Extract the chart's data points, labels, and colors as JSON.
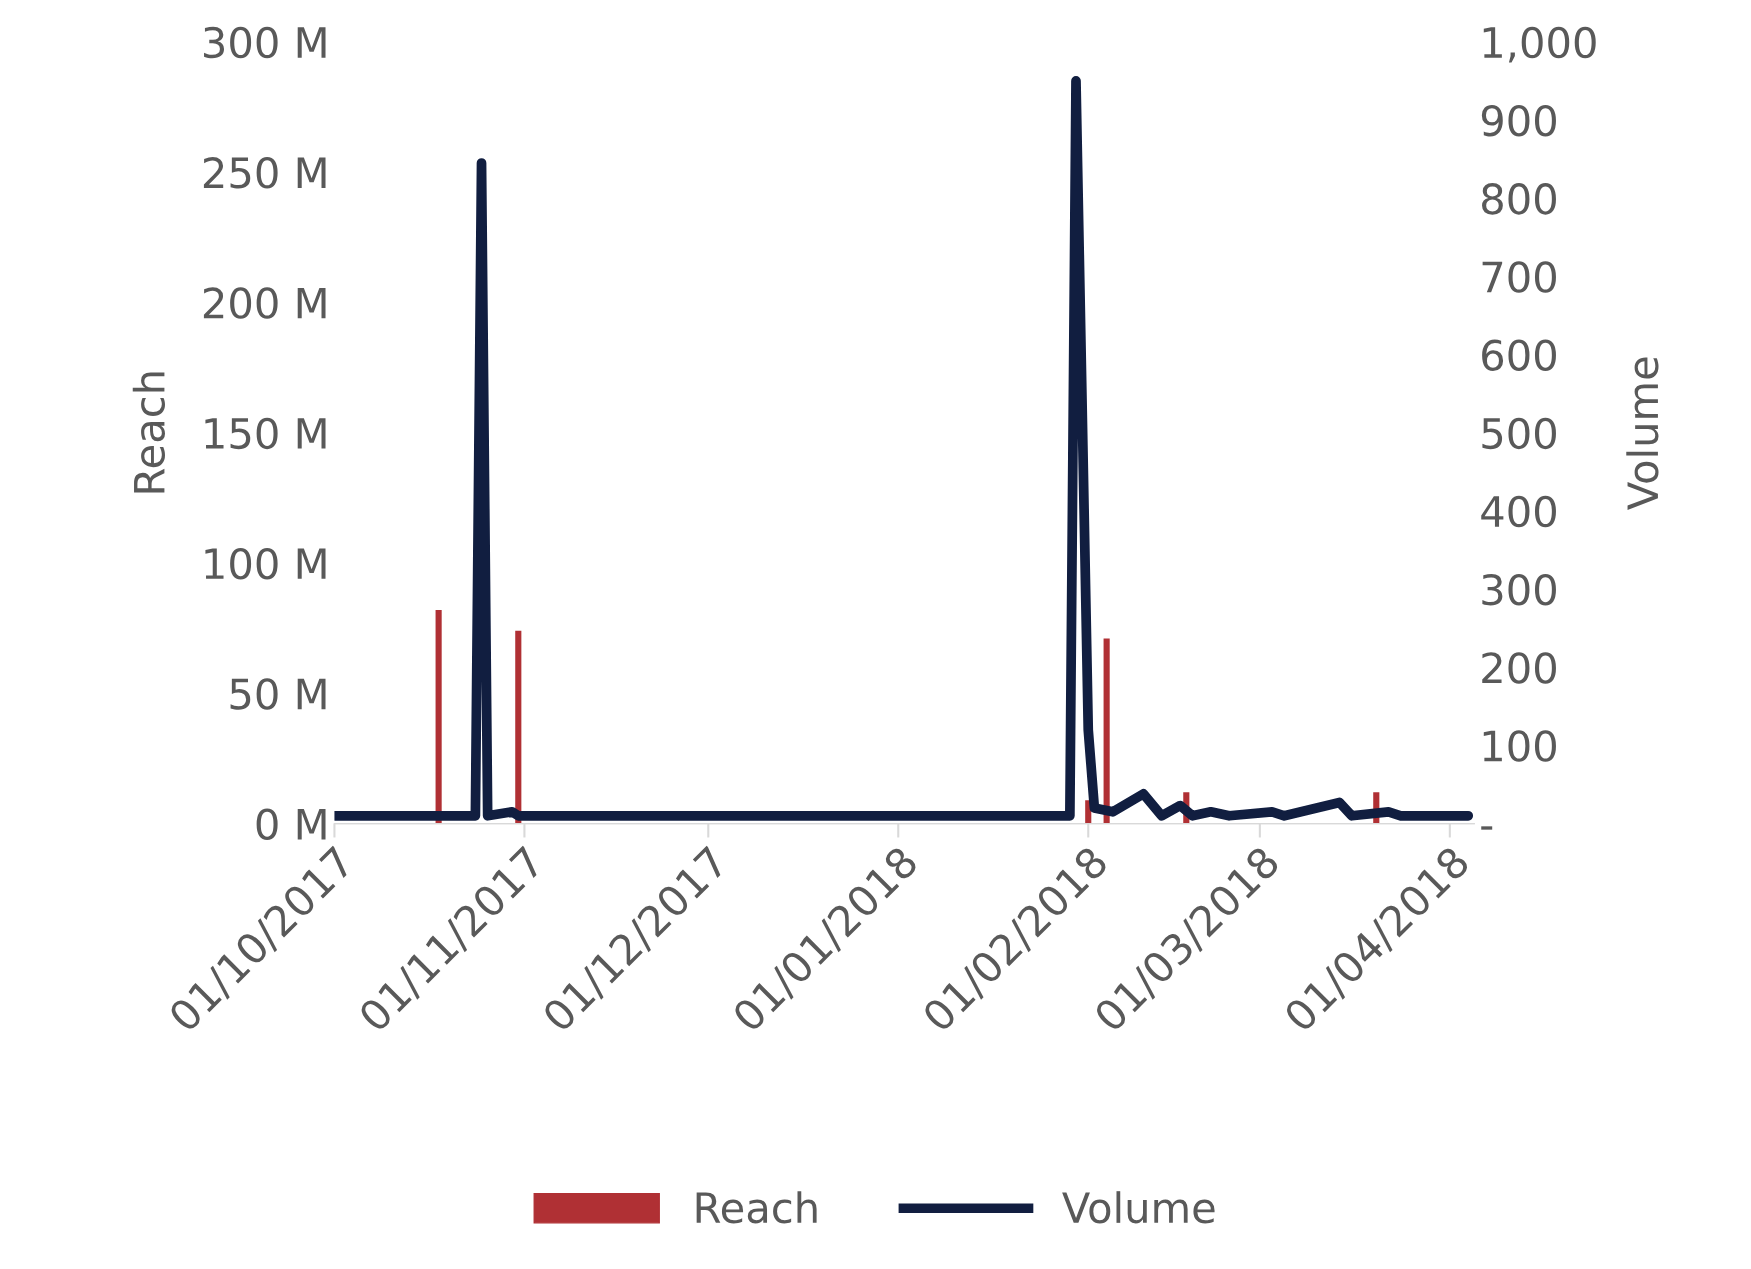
{
  "chart_data": {
    "type": "bar",
    "ylabel": "Reach",
    "y2label": "Volume",
    "xlim": [
      "2017-10-01",
      "2018-04-05"
    ],
    "xticks": [
      {
        "value": "2017-10-01",
        "label": "01/10/2017"
      },
      {
        "value": "2017-11-01",
        "label": "01/11/2017"
      },
      {
        "value": "2017-12-01",
        "label": "01/12/2017"
      },
      {
        "value": "2018-01-01",
        "label": "01/01/2018"
      },
      {
        "value": "2018-02-01",
        "label": "01/02/2018"
      },
      {
        "value": "2018-03-01",
        "label": "01/03/2018"
      },
      {
        "value": "2018-04-01",
        "label": "01/04/2018"
      }
    ],
    "ylim": [
      0,
      300000000
    ],
    "yticks": [
      {
        "value": 0,
        "label": "0 M"
      },
      {
        "value": 50000000,
        "label": "50 M"
      },
      {
        "value": 100000000,
        "label": "100 M"
      },
      {
        "value": 150000000,
        "label": "150 M"
      },
      {
        "value": 200000000,
        "label": "200 M"
      },
      {
        "value": 250000000,
        "label": "250 M"
      },
      {
        "value": 300000000,
        "label": "300 M"
      }
    ],
    "y2lim": [
      0,
      1000
    ],
    "y2ticks": [
      {
        "value": 0,
        "label": "-"
      },
      100,
      200,
      300,
      400,
      500,
      600,
      700,
      800,
      900,
      {
        "value": 1000,
        "label": "1,000"
      }
    ],
    "legend": "bottom",
    "grid": false,
    "series": [
      {
        "name": "Reach",
        "color": "#b03034",
        "x": [
          "2017-10-18",
          "2017-10-31",
          "2018-02-01",
          "2018-02-04",
          "2018-02-17",
          "2018-03-20"
        ],
        "values": [
          82000000,
          74000000,
          9000000,
          71000000,
          12000000,
          12000000
        ]
      },
      {
        "name": "Volume",
        "type": "line",
        "axis": "y2",
        "color": "#111e40",
        "x": [
          "2017-10-01",
          "2017-10-24",
          "2017-10-25",
          "2017-10-26",
          "2017-10-30",
          "2017-10-31",
          "2018-01-29",
          "2018-01-30",
          "2018-02-01",
          "2018-02-02",
          "2018-02-05",
          "2018-02-10",
          "2018-02-13",
          "2018-02-16",
          "2018-02-18",
          "2018-02-21",
          "2018-02-24",
          "2018-03-03",
          "2018-03-05",
          "2018-03-14",
          "2018-03-16",
          "2018-03-22",
          "2018-03-24",
          "2018-04-04"
        ],
        "values": [
          10,
          10,
          845,
          10,
          15,
          10,
          10,
          950,
          120,
          20,
          15,
          38,
          10,
          23,
          10,
          15,
          10,
          15,
          10,
          27,
          10,
          15,
          10,
          10
        ]
      }
    ]
  }
}
